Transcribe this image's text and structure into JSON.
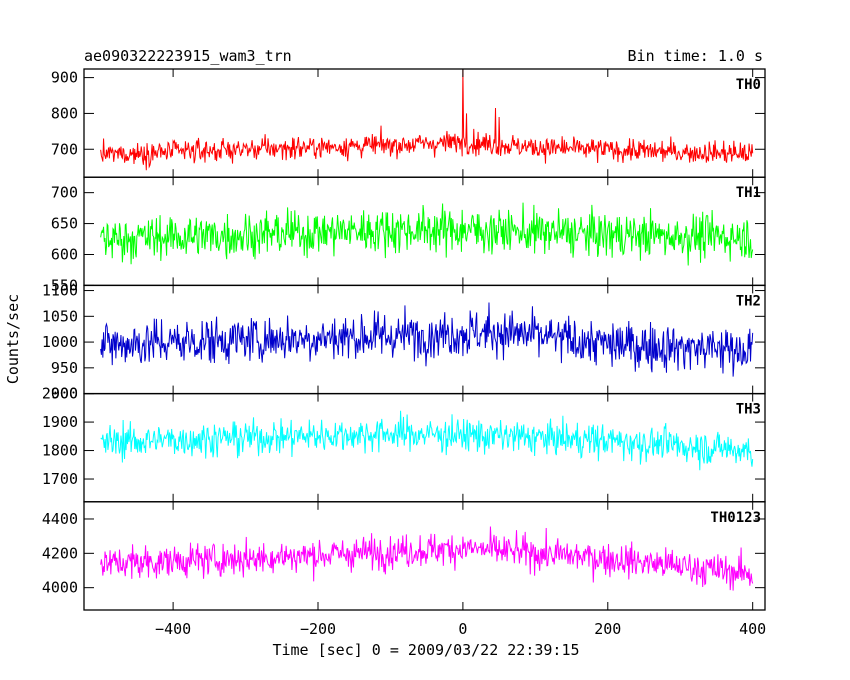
{
  "header": {
    "title": "ae090322223915_wam3_trn",
    "bin_time": "Bin time: 1.0 s"
  },
  "axes": {
    "xlabel": "Time [sec] 0 = 2009/03/22 22:39:15",
    "ylabel": "Counts/sec",
    "x_ticks": [
      "-400",
      "-200",
      "0",
      "200",
      "400"
    ]
  },
  "chart_data": {
    "type": "line",
    "title": "ae090322223915_wam3_trn",
    "xlabel": "Time [sec] 0 = 2009/03/22 22:39:15",
    "ylabel": "Counts/sec",
    "xlim": [
      -523,
      417
    ],
    "x_ticks": [
      -400,
      -200,
      0,
      200,
      400
    ],
    "x_range_data": [
      -500,
      400
    ],
    "bin_time_s": 1.0,
    "grid": false,
    "panels": [
      {
        "name": "TH0",
        "color": "#ff0000",
        "ylim": [
          622,
          924
        ],
        "ticks": [
          700,
          800,
          900
        ],
        "mean": 698,
        "noise": 22,
        "profile": [
          [
            -500,
            685
          ],
          [
            -300,
            700
          ],
          [
            -100,
            712
          ],
          [
            0,
            720
          ],
          [
            100,
            705
          ],
          [
            300,
            692
          ],
          [
            400,
            688
          ]
        ],
        "spikes": [
          [
            0,
            924
          ],
          [
            5,
            800
          ],
          [
            45,
            815
          ],
          [
            50,
            790
          ]
        ]
      },
      {
        "name": "TH1",
        "color": "#00ff00",
        "ylim": [
          550,
          725
        ],
        "ticks": [
          550,
          600,
          650,
          700
        ],
        "mean": 635,
        "noise": 25,
        "profile": [
          [
            -500,
            625
          ],
          [
            -300,
            632
          ],
          [
            -100,
            640
          ],
          [
            0,
            640
          ],
          [
            200,
            632
          ],
          [
            400,
            628
          ]
        ],
        "spikes": []
      },
      {
        "name": "TH2",
        "color": "#0000cc",
        "ylim": [
          900,
          1110
        ],
        "ticks": [
          900,
          950,
          1000,
          1050,
          1100
        ],
        "mean": 1000,
        "noise": 32,
        "profile": [
          [
            -500,
            995
          ],
          [
            -300,
            1005
          ],
          [
            -100,
            1012
          ],
          [
            50,
            1020
          ],
          [
            200,
            995
          ],
          [
            400,
            985
          ]
        ],
        "spikes": []
      },
      {
        "name": "TH3",
        "color": "#00ffff",
        "ylim": [
          1620,
          2000
        ],
        "ticks": [
          1700,
          1800,
          1900,
          2000
        ],
        "mean": 1840,
        "noise": 42,
        "profile": [
          [
            -500,
            1830
          ],
          [
            -300,
            1845
          ],
          [
            -100,
            1860
          ],
          [
            0,
            1855
          ],
          [
            200,
            1835
          ],
          [
            400,
            1800
          ]
        ],
        "spikes": []
      },
      {
        "name": "TH0123",
        "color": "#ff00ff",
        "ylim": [
          3870,
          4500
        ],
        "ticks": [
          4000,
          4200,
          4400
        ],
        "mean": 4180,
        "noise": 68,
        "profile": [
          [
            -500,
            4140
          ],
          [
            -300,
            4170
          ],
          [
            -100,
            4210
          ],
          [
            0,
            4230
          ],
          [
            200,
            4170
          ],
          [
            400,
            4080
          ]
        ],
        "spikes": []
      }
    ]
  }
}
